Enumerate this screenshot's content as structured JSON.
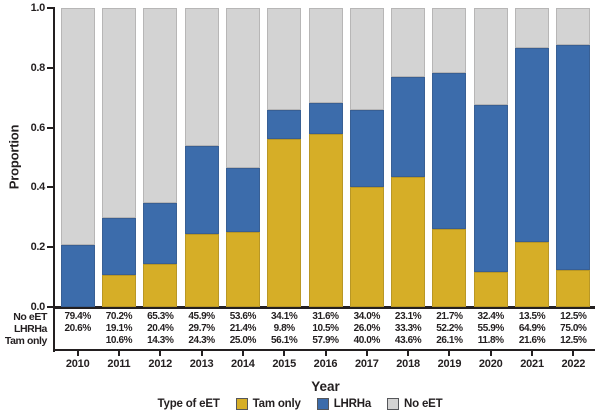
{
  "chart_data": {
    "type": "bar",
    "stacked": true,
    "title": "",
    "xlabel": "Year",
    "ylabel": "Proportion",
    "ylim": [
      0,
      1.0
    ],
    "yticks": [
      "1.0",
      "0.8",
      "0.6",
      "0.4",
      "0.2",
      "0.0"
    ],
    "grid": false,
    "categories": [
      "2010",
      "2011",
      "2012",
      "2013",
      "2014",
      "2015",
      "2016",
      "2017",
      "2018",
      "2019",
      "2020",
      "2021",
      "2022"
    ],
    "series": [
      {
        "name": "Tam only",
        "color": "#d6ae27",
        "values": [
          0,
          10.6,
          14.3,
          24.3,
          25.0,
          56.1,
          57.9,
          40.0,
          43.6,
          26.1,
          11.8,
          21.6,
          12.5
        ]
      },
      {
        "name": "LHRHa",
        "color": "#3c6cab",
        "values": [
          20.6,
          19.1,
          20.4,
          29.7,
          21.4,
          9.8,
          10.5,
          26.0,
          33.3,
          52.2,
          55.9,
          64.9,
          75.0
        ]
      },
      {
        "name": "No eET",
        "color": "#d3d3d3",
        "values": [
          79.4,
          70.2,
          65.3,
          45.9,
          53.6,
          34.1,
          31.6,
          34.0,
          23.1,
          21.7,
          32.4,
          13.5,
          12.5
        ]
      }
    ],
    "table_rows": [
      {
        "label": "No eET",
        "cells": [
          "79.4%",
          "70.2%",
          "65.3%",
          "45.9%",
          "53.6%",
          "34.1%",
          "31.6%",
          "34.0%",
          "23.1%",
          "21.7%",
          "32.4%",
          "13.5%",
          "12.5%"
        ]
      },
      {
        "label": "LHRHa",
        "cells": [
          "20.6%",
          "19.1%",
          "20.4%",
          "29.7%",
          "21.4%",
          "9.8%",
          "10.5%",
          "26.0%",
          "33.3%",
          "52.2%",
          "55.9%",
          "64.9%",
          "75.0%"
        ]
      },
      {
        "label": "Tam only",
        "cells": [
          "",
          "10.6%",
          "14.3%",
          "24.3%",
          "25.0%",
          "56.1%",
          "57.9%",
          "40.0%",
          "43.6%",
          "26.1%",
          "11.8%",
          "21.6%",
          "12.5%"
        ]
      }
    ],
    "legend": {
      "title": "Type of eET",
      "position": "bottom",
      "entries": [
        {
          "label": "Tam only",
          "color": "#d6ae27"
        },
        {
          "label": "LHRHa",
          "color": "#3c6cab"
        },
        {
          "label": "No eET",
          "color": "#d3d3d3"
        }
      ]
    },
    "colors": {
      "axis": "#231f20",
      "background": "#ffffff"
    }
  }
}
